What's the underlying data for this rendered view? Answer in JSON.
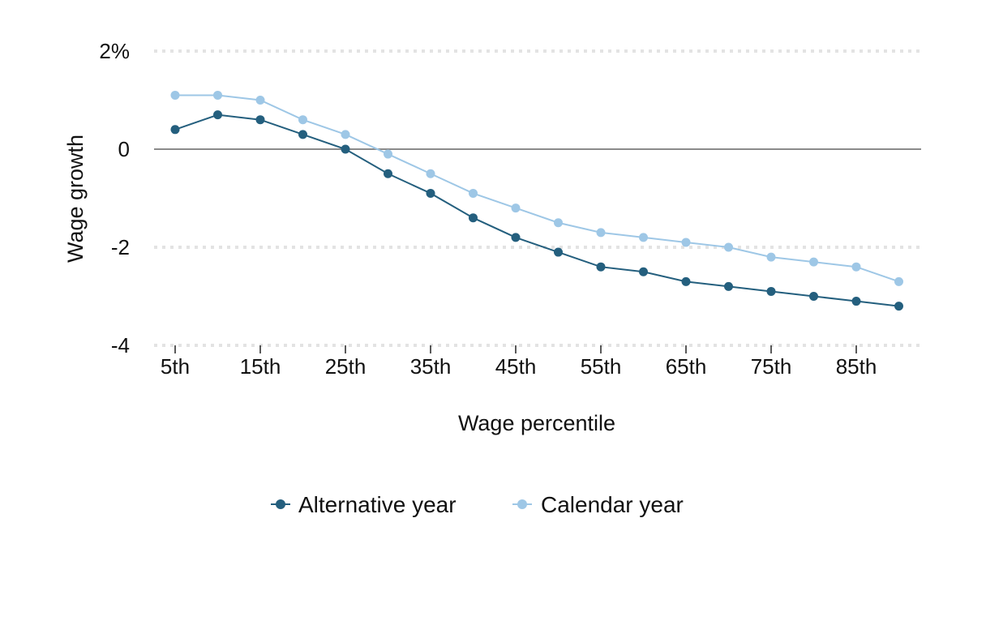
{
  "chart_data": {
    "type": "line",
    "xlabel": "Wage percentile",
    "ylabel": "Wage growth",
    "x": [
      "5th",
      "10th",
      "15th",
      "20th",
      "25th",
      "30th",
      "35th",
      "40th",
      "45th",
      "50th",
      "55th",
      "60th",
      "65th",
      "70th",
      "75th",
      "80th",
      "85th",
      "90th"
    ],
    "x_tick_labels": [
      "5th",
      "15th",
      "25th",
      "35th",
      "45th",
      "55th",
      "65th",
      "75th",
      "85th"
    ],
    "ylim": [
      -4,
      2
    ],
    "y_ticks": [
      2,
      0,
      -2,
      -4
    ],
    "y_tick_labels": [
      "2%",
      "0",
      "-2",
      "-4"
    ],
    "grid": true,
    "legend_position": "bottom",
    "series": [
      {
        "name": "Alternative year",
        "color": "#245f7e",
        "values": [
          0.4,
          0.7,
          0.6,
          0.3,
          0.0,
          -0.5,
          -0.9,
          -1.4,
          -1.8,
          -2.1,
          -2.4,
          -2.5,
          -2.7,
          -2.8,
          -2.9,
          -3.0,
          -3.1,
          -3.2
        ]
      },
      {
        "name": "Calendar year",
        "color": "#9ec7e6",
        "values": [
          1.1,
          1.1,
          1.0,
          0.6,
          0.3,
          -0.1,
          -0.5,
          -0.9,
          -1.2,
          -1.5,
          -1.7,
          -1.8,
          -1.9,
          -2.0,
          -2.2,
          -2.3,
          -2.4,
          -2.7
        ]
      }
    ]
  }
}
